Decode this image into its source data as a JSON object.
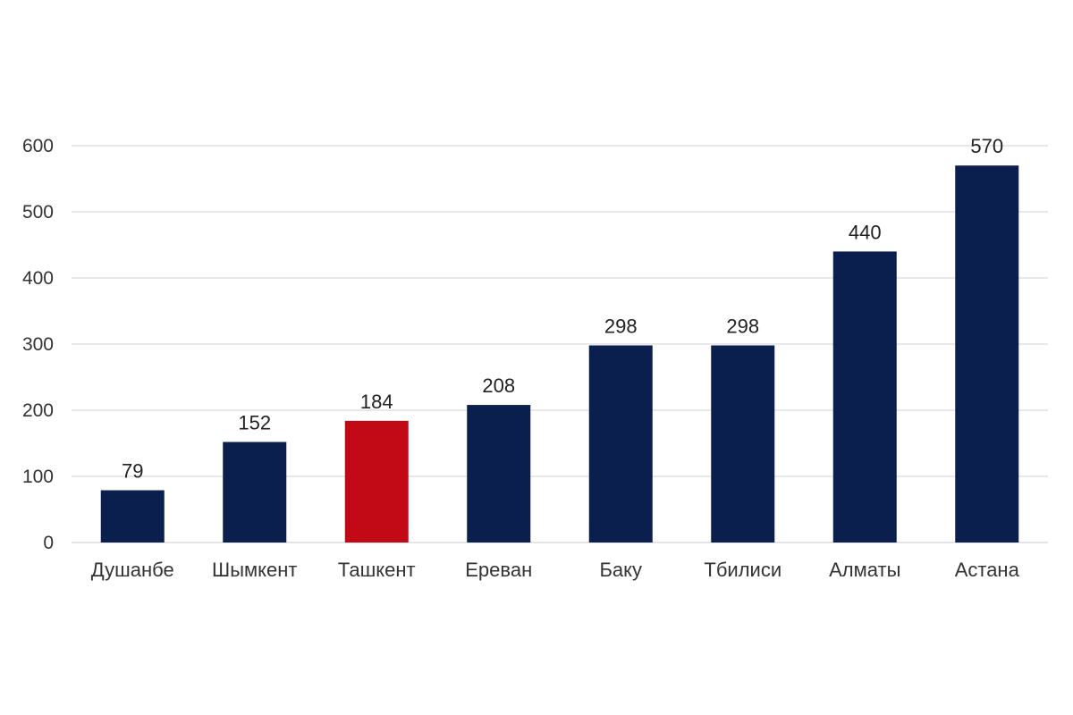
{
  "chart_data": {
    "type": "bar",
    "categories": [
      "Душанбе",
      "Шымкент",
      "Ташкент",
      "Ереван",
      "Баку",
      "Тбилиси",
      "Алматы",
      "Астана"
    ],
    "values": [
      79,
      152,
      184,
      208,
      298,
      298,
      440,
      570
    ],
    "data_labels": [
      "79",
      "152",
      "184",
      "208",
      "298",
      "298",
      "440",
      "570"
    ],
    "title": "",
    "xlabel": "",
    "ylabel": "",
    "ylim": [
      0,
      600
    ],
    "yticks": [
      0,
      100,
      200,
      300,
      400,
      500,
      600
    ],
    "grid": true,
    "legend": "none",
    "colors": {
      "default_bar": "#0b1f4f",
      "highlight_bar": "#c20a16",
      "highlight_category": "Ташкент"
    }
  }
}
